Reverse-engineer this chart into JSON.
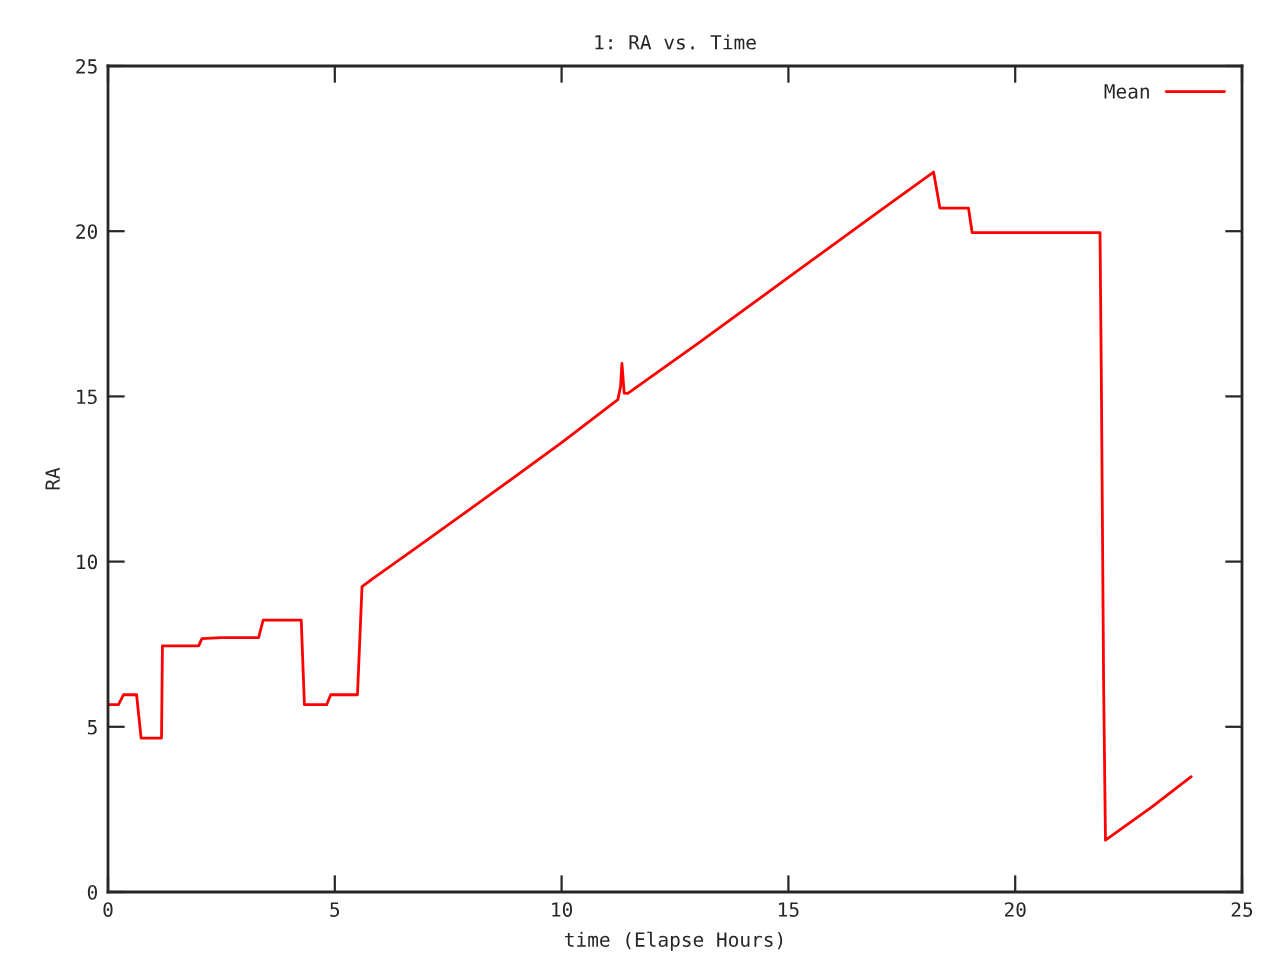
{
  "chart_data": {
    "type": "line",
    "title": "1: RA vs. Time",
    "xlabel": "time (Elapse Hours)",
    "ylabel": "RA",
    "xlim": [
      0,
      25
    ],
    "ylim": [
      0,
      25
    ],
    "xticks": [
      0,
      5,
      10,
      15,
      20,
      25
    ],
    "yticks": [
      0,
      5,
      10,
      15,
      20,
      25
    ],
    "grid": false,
    "legend": "top right",
    "marker": "none",
    "line_style": "solid",
    "series": [
      {
        "name": "Mean",
        "color": "#ff0000",
        "x": [
          0,
          0.23,
          0.34,
          0.63,
          0.73,
          1.18,
          1.2,
          2.0,
          2.07,
          2.5,
          3.32,
          3.42,
          4.26,
          4.33,
          4.82,
          4.91,
          5.5,
          5.6,
          5.8,
          6.83,
          8.5,
          10.0,
          11.24,
          11.3,
          11.33,
          11.38,
          11.46,
          13.0,
          15.0,
          17.0,
          18.2,
          18.34,
          18.97,
          19.05,
          21.87,
          21.9,
          21.95,
          21.99,
          23.0,
          23.88
        ],
        "values": [
          5.67,
          5.67,
          5.97,
          5.97,
          4.66,
          4.66,
          7.45,
          7.45,
          7.67,
          7.7,
          7.7,
          8.23,
          8.23,
          5.67,
          5.67,
          5.97,
          5.97,
          9.24,
          9.45,
          10.45,
          12.1,
          13.6,
          14.9,
          15.3,
          16.0,
          15.1,
          15.09,
          16.6,
          18.6,
          20.6,
          21.79,
          20.7,
          20.7,
          19.96,
          19.96,
          15.4,
          6.2,
          1.57,
          2.56,
          3.49
        ]
      }
    ]
  }
}
